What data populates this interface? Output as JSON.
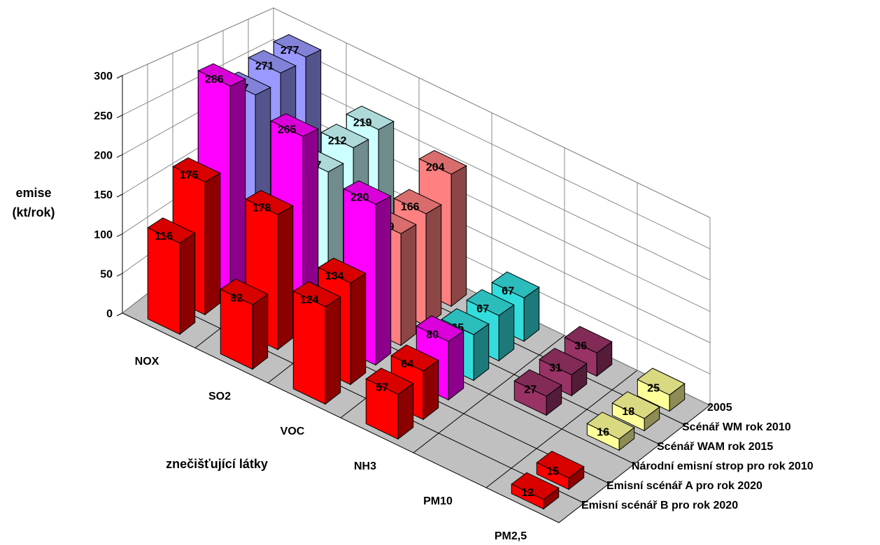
{
  "chart_data": {
    "type": "bar3d",
    "y_label": "emise (kt/rok)",
    "x_label": "znečišťující látky",
    "categories": [
      "NOX",
      "SO2",
      "VOC",
      "NH3",
      "PM10",
      "PM2,5"
    ],
    "series": [
      {
        "name": "2005",
        "values": [
          277,
          219,
          204,
          67,
          36,
          25
        ],
        "colors": [
          "#9999ff",
          "#ccffff",
          "#ff8080",
          "#33dddd",
          "#993366",
          "#ffff99"
        ]
      },
      {
        "name": "Scénář WM rok 2010",
        "values": [
          271,
          212,
          166,
          67,
          31,
          18
        ],
        "colors": [
          "#9999ff",
          "#ccffff",
          "#ff8080",
          "#33dddd",
          "#993366",
          "#ffff99"
        ]
      },
      {
        "name": "Scénář WAM rok 2015",
        "values": [
          257,
          197,
          159,
          65,
          27,
          16
        ],
        "colors": [
          "#9999ff",
          "#ccffff",
          "#ff8080",
          "#33dddd",
          "#993366",
          "#ffff99"
        ]
      },
      {
        "name": "Národní emisní strop pro rok 2010",
        "values": [
          286,
          265,
          220,
          80,
          null,
          null
        ],
        "colors": [
          "#ff00ff",
          "#ff00ff",
          "#ff00ff",
          "#ff00ff",
          null,
          null
        ]
      },
      {
        "name": "Emisní scénář A pro rok 2020",
        "values": [
          175,
          178,
          134,
          64,
          null,
          15
        ],
        "colors": [
          "#ff0000",
          "#ff0000",
          "#ff0000",
          "#ff0000",
          null,
          "#ff0000"
        ]
      },
      {
        "name": "Emisní scénář B pro rok 2020",
        "values": [
          116,
          82,
          124,
          57,
          null,
          12
        ],
        "colors": [
          "#ff0000",
          "#ff0000",
          "#ff0000",
          "#ff0000",
          null,
          "#ff0000"
        ]
      }
    ],
    "ylim": [
      0,
      300
    ],
    "yticks": [
      0,
      50,
      100,
      150,
      200,
      250,
      300
    ],
    "grid": true,
    "floor_color": "#c0c0c0"
  }
}
